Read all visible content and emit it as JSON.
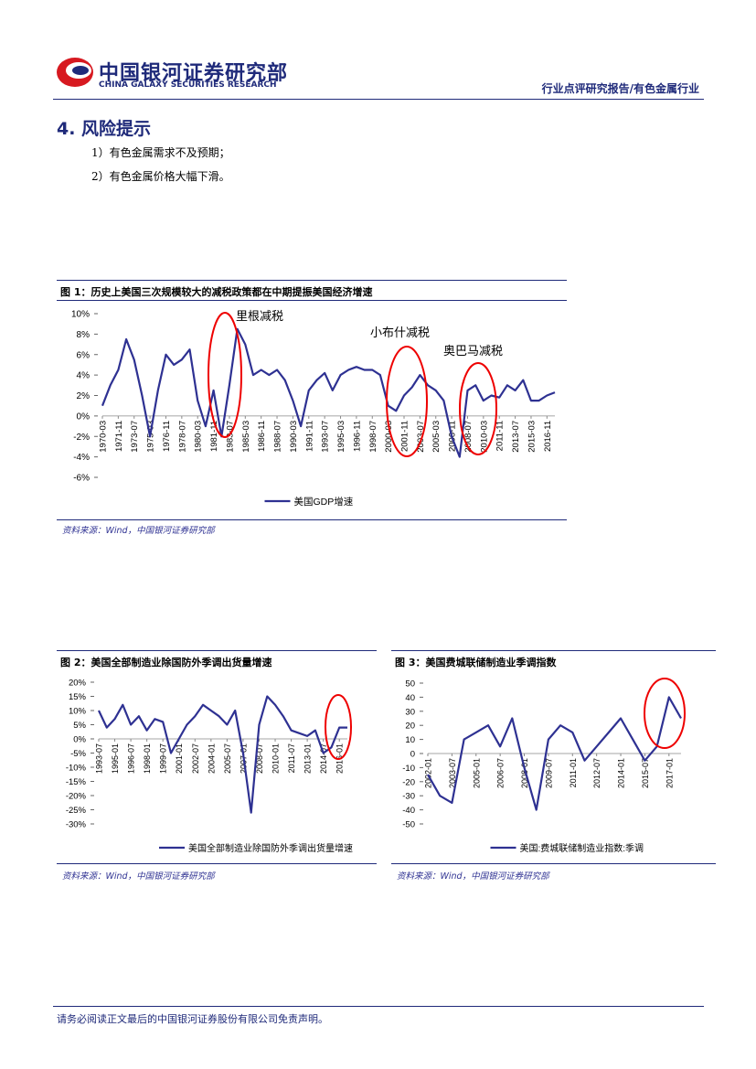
{
  "header": {
    "logo_title": "中国银河证券研究部",
    "logo_subtitle": "CHINA GALAXY SECURITIES RESEARCH",
    "report_type": "行业点评研究报告/有色金属行业"
  },
  "section": {
    "title": "4. 风险提示",
    "items": [
      "1）有色金属需求不及预期；",
      "2）有色金属价格大幅下滑。"
    ]
  },
  "footer": "请务必阅读正文最后的中国银河证券股份有限公司免责声明。",
  "chart_data": [
    {
      "type": "line",
      "title": "图 1：历史上美国三次规模较大的减税政策都在中期提振美国经济增速",
      "source": "资料来源：Wind，中国银河证券研究部",
      "annotations": [
        "里根减税",
        "小布什减税",
        "奥巴马减税"
      ],
      "categories": [
        "1970-03",
        null,
        "1971-11",
        null,
        "1973-07",
        null,
        "1975-03",
        null,
        "1976-11",
        null,
        "1978-07",
        null,
        "1980-03",
        null,
        "1981-11",
        null,
        "1983-07",
        null,
        "1985-03",
        null,
        "1986-11",
        null,
        "1988-07",
        null,
        "1990-03",
        null,
        "1991-11",
        null,
        "1993-07",
        null,
        "1995-03",
        null,
        "1996-11",
        null,
        "1998-07",
        null,
        "2000-03",
        null,
        "2001-11",
        null,
        "2003-07",
        null,
        "2005-03",
        null,
        "2006-11",
        null,
        "2008-07",
        null,
        "2010-03",
        null,
        "2011-11",
        null,
        "2013-07",
        null,
        "2015-03",
        null,
        "2016-11",
        null
      ],
      "series": [
        {
          "name": "美国GDP增速",
          "color": "#2e3192",
          "values": [
            1.0,
            3.0,
            4.5,
            7.5,
            5.5,
            2.0,
            -2.0,
            2.5,
            6.0,
            5.0,
            5.5,
            6.5,
            1.5,
            -1.0,
            2.5,
            -2.0,
            3.0,
            8.5,
            7.0,
            4.0,
            4.5,
            4.0,
            4.5,
            3.5,
            1.5,
            -1.0,
            2.5,
            3.5,
            4.2,
            2.5,
            4.0,
            4.5,
            4.8,
            4.5,
            4.5,
            4.0,
            1.0,
            0.5,
            2.0,
            2.8,
            4.0,
            3.0,
            2.5,
            1.5,
            -2.0,
            -4.0,
            2.5,
            3.0,
            1.5,
            2.0,
            1.8,
            3.0,
            2.5,
            3.5,
            1.5,
            1.5,
            2.0,
            2.3
          ]
        }
      ],
      "ylim": [
        -6,
        10
      ],
      "yticks": [
        {
          "value": 10,
          "label": "10%"
        },
        {
          "value": 8,
          "label": "8%"
        },
        {
          "value": 6,
          "label": "6%"
        },
        {
          "value": 4,
          "label": "4%"
        },
        {
          "value": 2,
          "label": "2%"
        },
        {
          "value": 0,
          "label": "0%"
        },
        {
          "value": -2,
          "label": "-2%"
        },
        {
          "value": -4,
          "label": "-4%"
        },
        {
          "value": -6,
          "label": "-6%"
        }
      ]
    },
    {
      "type": "line",
      "title": "图 2：美国全部制造业除国防外季调出货量增速",
      "source": "资料来源：Wind，中国银河证券研究部",
      "categories": [
        "1993-07",
        null,
        "1995-01",
        null,
        "1996-07",
        null,
        "1998-01",
        null,
        "1999-07",
        null,
        "2001-01",
        null,
        "2002-07",
        null,
        "2004-01",
        null,
        "2005-07",
        null,
        "2007-01",
        null,
        "2008-07",
        null,
        "2010-01",
        null,
        "2011-07",
        null,
        "2013-01",
        null,
        "2014-07",
        null,
        "2016-01",
        null
      ],
      "series": [
        {
          "name": "美国全部制造业除国防外季调出货量增速",
          "color": "#2e3192",
          "values": [
            10,
            4,
            7,
            12,
            5,
            8,
            3,
            7,
            6,
            -5,
            0,
            5,
            8,
            12,
            10,
            8,
            5,
            10,
            -5,
            -26,
            5,
            15,
            12,
            8,
            3,
            2,
            1,
            3,
            -5,
            -3,
            4,
            4
          ]
        }
      ],
      "ylim": [
        -30,
        20
      ],
      "yticks": [
        {
          "value": 20,
          "label": "20%"
        },
        {
          "value": 15,
          "label": "15%"
        },
        {
          "value": 10,
          "label": "10%"
        },
        {
          "value": 5,
          "label": "5%"
        },
        {
          "value": 0,
          "label": "0%"
        },
        {
          "value": -5,
          "label": "-5%"
        },
        {
          "value": -10,
          "label": "-10%"
        },
        {
          "value": -15,
          "label": "-15%"
        },
        {
          "value": -20,
          "label": "-20%"
        },
        {
          "value": -25,
          "label": "-25%"
        },
        {
          "value": -30,
          "label": "-30%"
        }
      ]
    },
    {
      "type": "line",
      "title": "图 3：美国费城联储制造业季调指数",
      "source": "资料来源：Wind，中国银河证券研究部",
      "categories": [
        "2002-01",
        null,
        "2003-07",
        null,
        "2005-01",
        null,
        "2006-07",
        null,
        "2008-01",
        null,
        "2009-07",
        null,
        "2011-01",
        null,
        "2012-07",
        null,
        "2014-01",
        null,
        "2015-07",
        null,
        "2017-01",
        null
      ],
      "series": [
        {
          "name": "美国:费城联储制造业指数:季调",
          "color": "#2e3192",
          "values": [
            -15,
            -30,
            -35,
            10,
            15,
            20,
            5,
            25,
            -10,
            -40,
            10,
            20,
            15,
            -5,
            5,
            15,
            25,
            10,
            -5,
            5,
            40,
            25
          ]
        }
      ],
      "ylim": [
        -50,
        50
      ],
      "yticks": [
        50,
        40,
        30,
        20,
        10,
        0,
        -10,
        -20,
        -30,
        -40,
        -50
      ]
    }
  ]
}
